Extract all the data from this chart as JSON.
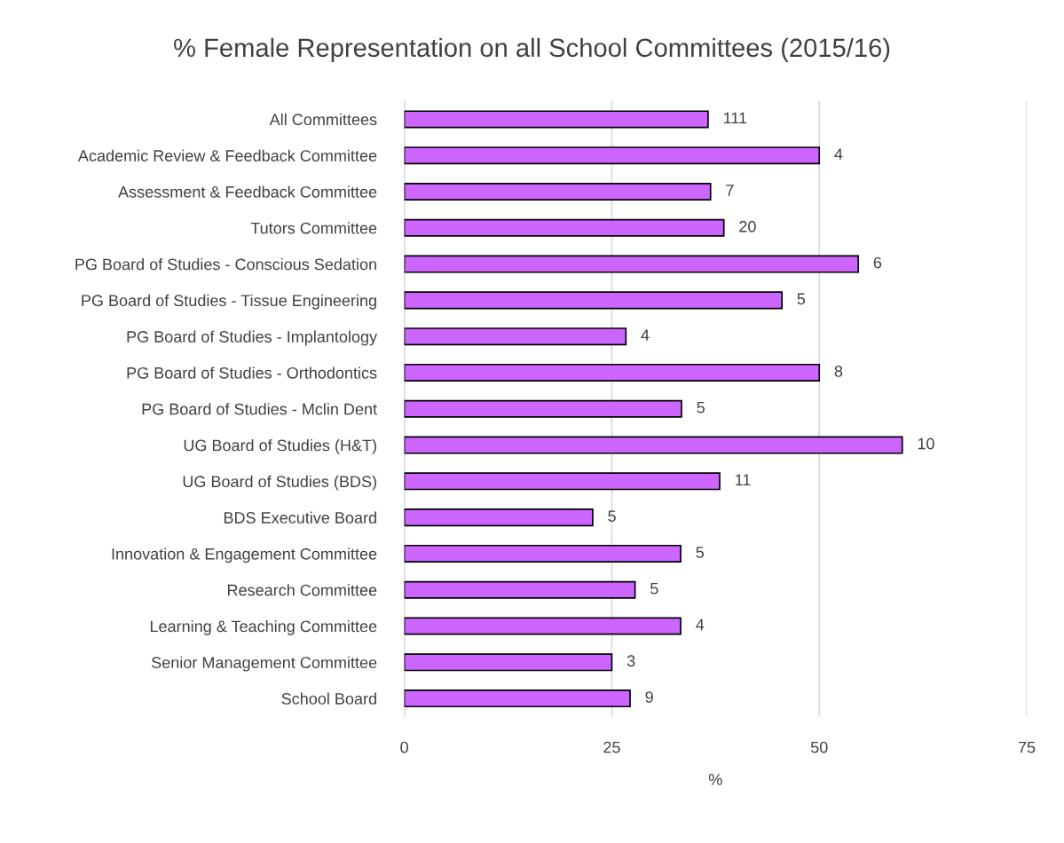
{
  "chart_data": {
    "type": "bar",
    "orientation": "horizontal",
    "title": "% Female Representation on all School Committees (2015/16)",
    "xlabel": "%",
    "categories": [
      "All Committees",
      "Academic Review & Feedback Committee",
      "Assessment & Feedback Committee",
      "Tutors Committee",
      "PG Board of Studies - Conscious Sedation",
      "PG Board of Studies - Tissue Engineering",
      "PG Board of Studies - Implantology",
      "PG Board of Studies - Orthodontics",
      "PG Board of Studies - Mclin Dent",
      "UG Board of Studies (H&T)",
      "UG Board of Studies (BDS)",
      "BDS Executive Board",
      "Innovation & Engagement Committee",
      "Research Committee",
      "Learning & Teaching Committee",
      "Senior Management Committee",
      "School Board"
    ],
    "values": [
      36.6,
      50,
      36.9,
      38.5,
      54.7,
      45.5,
      26.7,
      50,
      33.4,
      60,
      38,
      22.7,
      33.3,
      27.8,
      33.3,
      25,
      27.2
    ],
    "annotations": [
      {
        "text": "111",
        "x": 36.6,
        "y": "All Committees"
      },
      {
        "text": "4",
        "x": 50,
        "y": "Academic Review & Feedback Committee"
      },
      {
        "text": "7",
        "x": 36.9,
        "y": "Assessment & Feedback Committee"
      },
      {
        "text": "20",
        "x": 38.5,
        "y": "Tutors Committee"
      },
      {
        "text": "6",
        "x": 54.7,
        "y": "PG Board of Studies - Conscious Sedation"
      },
      {
        "text": "5",
        "x": 45.5,
        "y": "PG Board of Studies - Tissue Engineering"
      },
      {
        "text": "4",
        "x": 26.7,
        "y": "PG Board of Studies - Implantology"
      },
      {
        "text": "8",
        "x": 50,
        "y": "PG Board of Studies - Orthodontics"
      },
      {
        "text": "5",
        "x": 33.4,
        "y": "PG Board of Studies - Mclin Dent"
      },
      {
        "text": "10",
        "x": 60,
        "y": "UG Board of Studies (H&T)"
      },
      {
        "text": "11",
        "x": 38,
        "y": "UG Board of Studies (BDS)"
      },
      {
        "text": "5",
        "x": 22.7,
        "y": "BDS Executive Board"
      },
      {
        "text": "5",
        "x": 33.3,
        "y": "Innovation & Engagement Committee"
      },
      {
        "text": "5",
        "x": 27.8,
        "y": "Research Committee"
      },
      {
        "text": "4",
        "x": 33.3,
        "y": "Learning & Teaching Committee"
      },
      {
        "text": "3",
        "x": 25,
        "y": "Senior Management Committee"
      },
      {
        "text": "9",
        "x": 27.2,
        "y": "School Board"
      }
    ],
    "color": "#cc66ff",
    "xlim": [
      0,
      75
    ],
    "xticks": [
      0,
      25,
      50,
      75
    ],
    "grid": "x"
  }
}
